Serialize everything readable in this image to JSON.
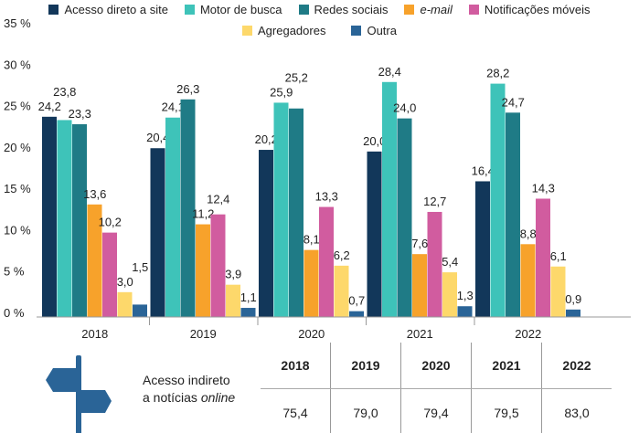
{
  "chart_data": {
    "type": "bar",
    "categories": [
      "2018",
      "2019",
      "2020",
      "2021",
      "2022"
    ],
    "ylim": [
      0,
      35
    ],
    "yticks": [
      "0 %",
      "5 %",
      "10 %",
      "15 %",
      "20 %",
      "25 %",
      "30 %",
      "35 %"
    ],
    "legend_placement": "top",
    "series": [
      {
        "name": "Acesso direto a site",
        "color": "#12375a",
        "values": [
          24.2,
          20.4,
          20.2,
          20.0,
          16.4
        ],
        "labels": [
          "24,2",
          "20,4",
          "20,2",
          "20,0",
          "16,4"
        ]
      },
      {
        "name": "Motor de busca",
        "color": "#3ec3b9",
        "values": [
          23.8,
          24.1,
          25.9,
          28.4,
          28.2
        ],
        "labels": [
          "23,8",
          "24,1",
          "25,9",
          "28,4",
          "28,2"
        ]
      },
      {
        "name": "Redes sociais",
        "color": "#1f7b86",
        "values": [
          23.3,
          26.3,
          25.2,
          24.0,
          24.7
        ],
        "labels": [
          "23,3",
          "26,3",
          "25,2",
          "24,0",
          "24,7"
        ]
      },
      {
        "name": "e-mail",
        "color": "#f7a22b",
        "italic": true,
        "values": [
          13.6,
          11.2,
          8.1,
          7.6,
          8.8
        ],
        "labels": [
          "13,6",
          "11,2",
          "8,1",
          "7,6",
          "8,8"
        ]
      },
      {
        "name": "Notificações móveis",
        "color": "#d15c9f",
        "values": [
          10.2,
          12.4,
          13.3,
          12.7,
          14.3
        ],
        "labels": [
          "10,2",
          "12,4",
          "13,3",
          "12,7",
          "14,3"
        ]
      },
      {
        "name": "Agregadores",
        "color": "#fdd86b",
        "values": [
          3.0,
          3.9,
          6.2,
          5.4,
          6.1
        ],
        "labels": [
          "3,0",
          "3,9",
          "6,2",
          "5,4",
          "6,1"
        ]
      },
      {
        "name": "Outra",
        "color": "#2a6497",
        "values": [
          1.5,
          1.1,
          0.7,
          1.3,
          0.9
        ],
        "labels": [
          "1,5",
          "1,1",
          "0,7",
          "1,3",
          "0,9"
        ]
      }
    ]
  },
  "indirect": {
    "label_line1": "Acesso indireto",
    "label_line2_prefix": "a notícias ",
    "label_line2_italic": "online",
    "years": [
      "2018",
      "2019",
      "2020",
      "2021",
      "2022"
    ],
    "values": [
      "75,4",
      "79,0",
      "79,4",
      "79,5",
      "83,0"
    ],
    "icon": "signpost-icon",
    "icon_color": "#2a6497"
  }
}
